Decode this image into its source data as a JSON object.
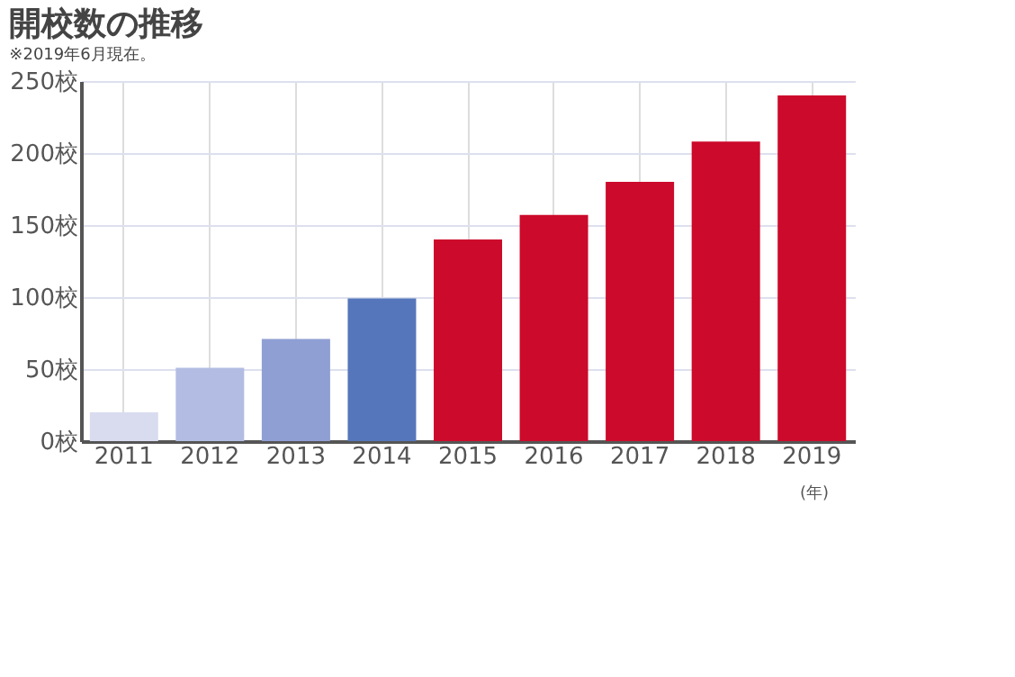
{
  "chart_data": {
    "type": "bar",
    "title": "開校数の推移",
    "subtitle": "※2019年6月現在。",
    "xlabel": "(年)",
    "categories": [
      "2011",
      "2012",
      "2013",
      "2014",
      "2015",
      "2016",
      "2017",
      "2018",
      "2019"
    ],
    "values": [
      20,
      51,
      71,
      99,
      140,
      157,
      180,
      208,
      240
    ],
    "colors": [
      "#d9dcef",
      "#b3bde3",
      "#8f9fd3",
      "#5676bb",
      "#cc0a2b",
      "#cc0a2b",
      "#cc0a2b",
      "#cc0a2b",
      "#cc0a2b"
    ],
    "ylim": [
      0,
      250
    ],
    "yticks": [
      {
        "value": 0,
        "label": "0校"
      },
      {
        "value": 50,
        "label": "50校"
      },
      {
        "value": 100,
        "label": "100校"
      },
      {
        "value": 150,
        "label": "150校"
      },
      {
        "value": 200,
        "label": "200校"
      },
      {
        "value": 250,
        "label": "250校"
      }
    ],
    "grid": true
  }
}
